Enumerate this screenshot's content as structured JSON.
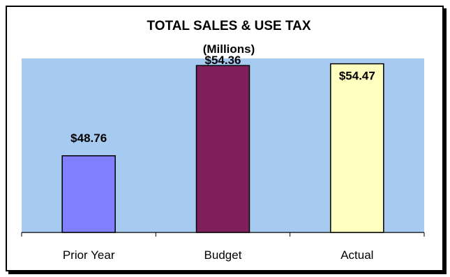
{
  "chart_data": {
    "type": "bar",
    "title": "TOTAL SALES & USE TAX",
    "subtitle": "(Millions)",
    "categories": [
      "Prior Year",
      "Budget",
      "Actual"
    ],
    "values": [
      48.76,
      54.36,
      54.47
    ],
    "data_labels": [
      "$48.76",
      "$54.36",
      "$54.47"
    ],
    "colors": [
      "#8080ff",
      "#7f1f5c",
      "#ffffc0"
    ],
    "plot_background": "#a6caf0",
    "ylim": [
      44,
      54.8
    ],
    "grid": false,
    "legend": "none"
  }
}
